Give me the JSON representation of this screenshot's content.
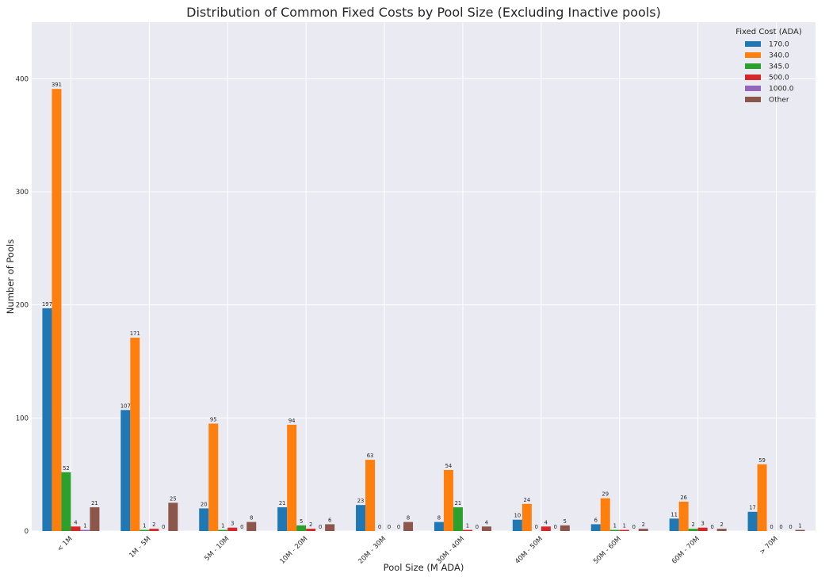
{
  "chart_data": {
    "type": "bar",
    "title": "Distribution of Common Fixed Costs by Pool Size (Excluding Inactive pools)",
    "xlabel": "Pool Size (M ADA)",
    "ylabel": "Number of Pools",
    "categories": [
      "< 1M",
      "1M - 5M",
      "5M - 10M",
      "10M - 20M",
      "20M - 30M",
      "30M - 40M",
      "40M - 50M",
      "50M - 60M",
      "60M - 70M",
      "> 70M"
    ],
    "yticks": [
      0,
      100,
      200,
      300,
      400
    ],
    "ylim": [
      0,
      450
    ],
    "grid": true,
    "legend": {
      "title": "Fixed Cost (ADA)",
      "placement": "top-right"
    },
    "series": [
      {
        "name": "170.0",
        "color": "#1f77b4",
        "values": [
          197,
          107,
          20,
          21,
          23,
          8,
          10,
          6,
          11,
          17
        ]
      },
      {
        "name": "340.0",
        "color": "#ff7f0e",
        "values": [
          391,
          171,
          95,
          94,
          63,
          54,
          24,
          29,
          26,
          59
        ]
      },
      {
        "name": "345.0",
        "color": "#2ca02c",
        "values": [
          52,
          1,
          1,
          5,
          0,
          21,
          0,
          1,
          2,
          0
        ]
      },
      {
        "name": "500.0",
        "color": "#d62728",
        "values": [
          4,
          2,
          3,
          2,
          0,
          1,
          4,
          1,
          3,
          0
        ]
      },
      {
        "name": "1000.0",
        "color": "#9467bd",
        "values": [
          1,
          0,
          0,
          0,
          0,
          0,
          0,
          0,
          0,
          0
        ]
      },
      {
        "name": "Other",
        "color": "#8c564b",
        "values": [
          21,
          25,
          8,
          6,
          8,
          4,
          5,
          2,
          2,
          1
        ]
      }
    ],
    "colors": {
      "plot_background": "#eaeaf2",
      "grid": "#ffffff"
    }
  }
}
